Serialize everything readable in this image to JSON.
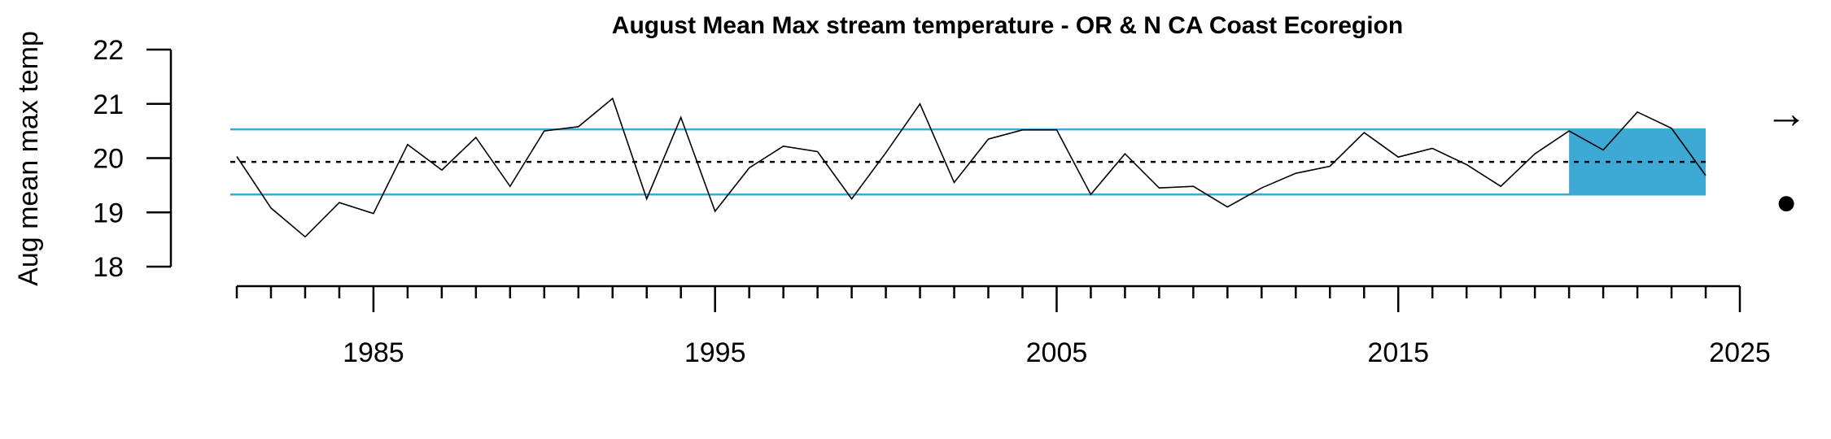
{
  "chart_data": {
    "type": "line",
    "title": "August Mean Max stream temperature - OR & N CA Coast Ecoregion",
    "ylabel": "Aug mean max temp",
    "xlabel": "",
    "xlim": [
      1980,
      2025
    ],
    "ylim": [
      18,
      22
    ],
    "x_ticks": [
      1985,
      1995,
      2005,
      2015,
      2025
    ],
    "x_minor_ticks": [
      1981,
      1982,
      1983,
      1984,
      1985,
      1986,
      1987,
      1988,
      1989,
      1990,
      1991,
      1992,
      1993,
      1994,
      1995,
      1996,
      1997,
      1998,
      1999,
      2000,
      2001,
      2002,
      2003,
      2004,
      2005,
      2006,
      2007,
      2008,
      2009,
      2010,
      2011,
      2012,
      2013,
      2014,
      2015,
      2016,
      2017,
      2018,
      2019,
      2020,
      2021,
      2022,
      2023,
      2024,
      2025
    ],
    "y_ticks": [
      18,
      19,
      20,
      21,
      22
    ],
    "mean": 19.93,
    "upper_sd": 20.53,
    "lower_sd": 19.33,
    "highlight_range": [
      2020,
      2024
    ],
    "colors": {
      "band": "#3fa9d6",
      "sd_line": "#3fa9d6",
      "series": "#000000"
    },
    "series": [
      {
        "x": [
          1981,
          1982,
          1983,
          1984,
          1985,
          1986,
          1987,
          1988,
          1989,
          1990,
          1991,
          1992,
          1993,
          1994,
          1995,
          1996,
          1997,
          1998,
          1999,
          2000,
          2001,
          2002,
          2003,
          2004,
          2005,
          2006,
          2007,
          2008,
          2009,
          2010,
          2011,
          2012,
          2013,
          2014,
          2015,
          2016,
          2017,
          2018,
          2019,
          2020,
          2021,
          2022,
          2023,
          2024
        ],
        "y": [
          20.03,
          19.08,
          18.55,
          19.18,
          18.98,
          20.25,
          19.78,
          20.38,
          19.48,
          20.5,
          20.58,
          21.1,
          19.25,
          20.75,
          19.02,
          19.82,
          20.22,
          20.12,
          19.25,
          20.1,
          21.0,
          19.55,
          20.35,
          20.52,
          20.52,
          19.33,
          20.08,
          19.45,
          19.48,
          19.1,
          19.45,
          19.72,
          19.85,
          20.47,
          20.02,
          20.18,
          19.88,
          19.48,
          20.08,
          20.5,
          20.15,
          20.85,
          20.55,
          19.68
        ]
      }
    ],
    "trend_symbol": "→",
    "recent_mean_symbol": "●"
  }
}
